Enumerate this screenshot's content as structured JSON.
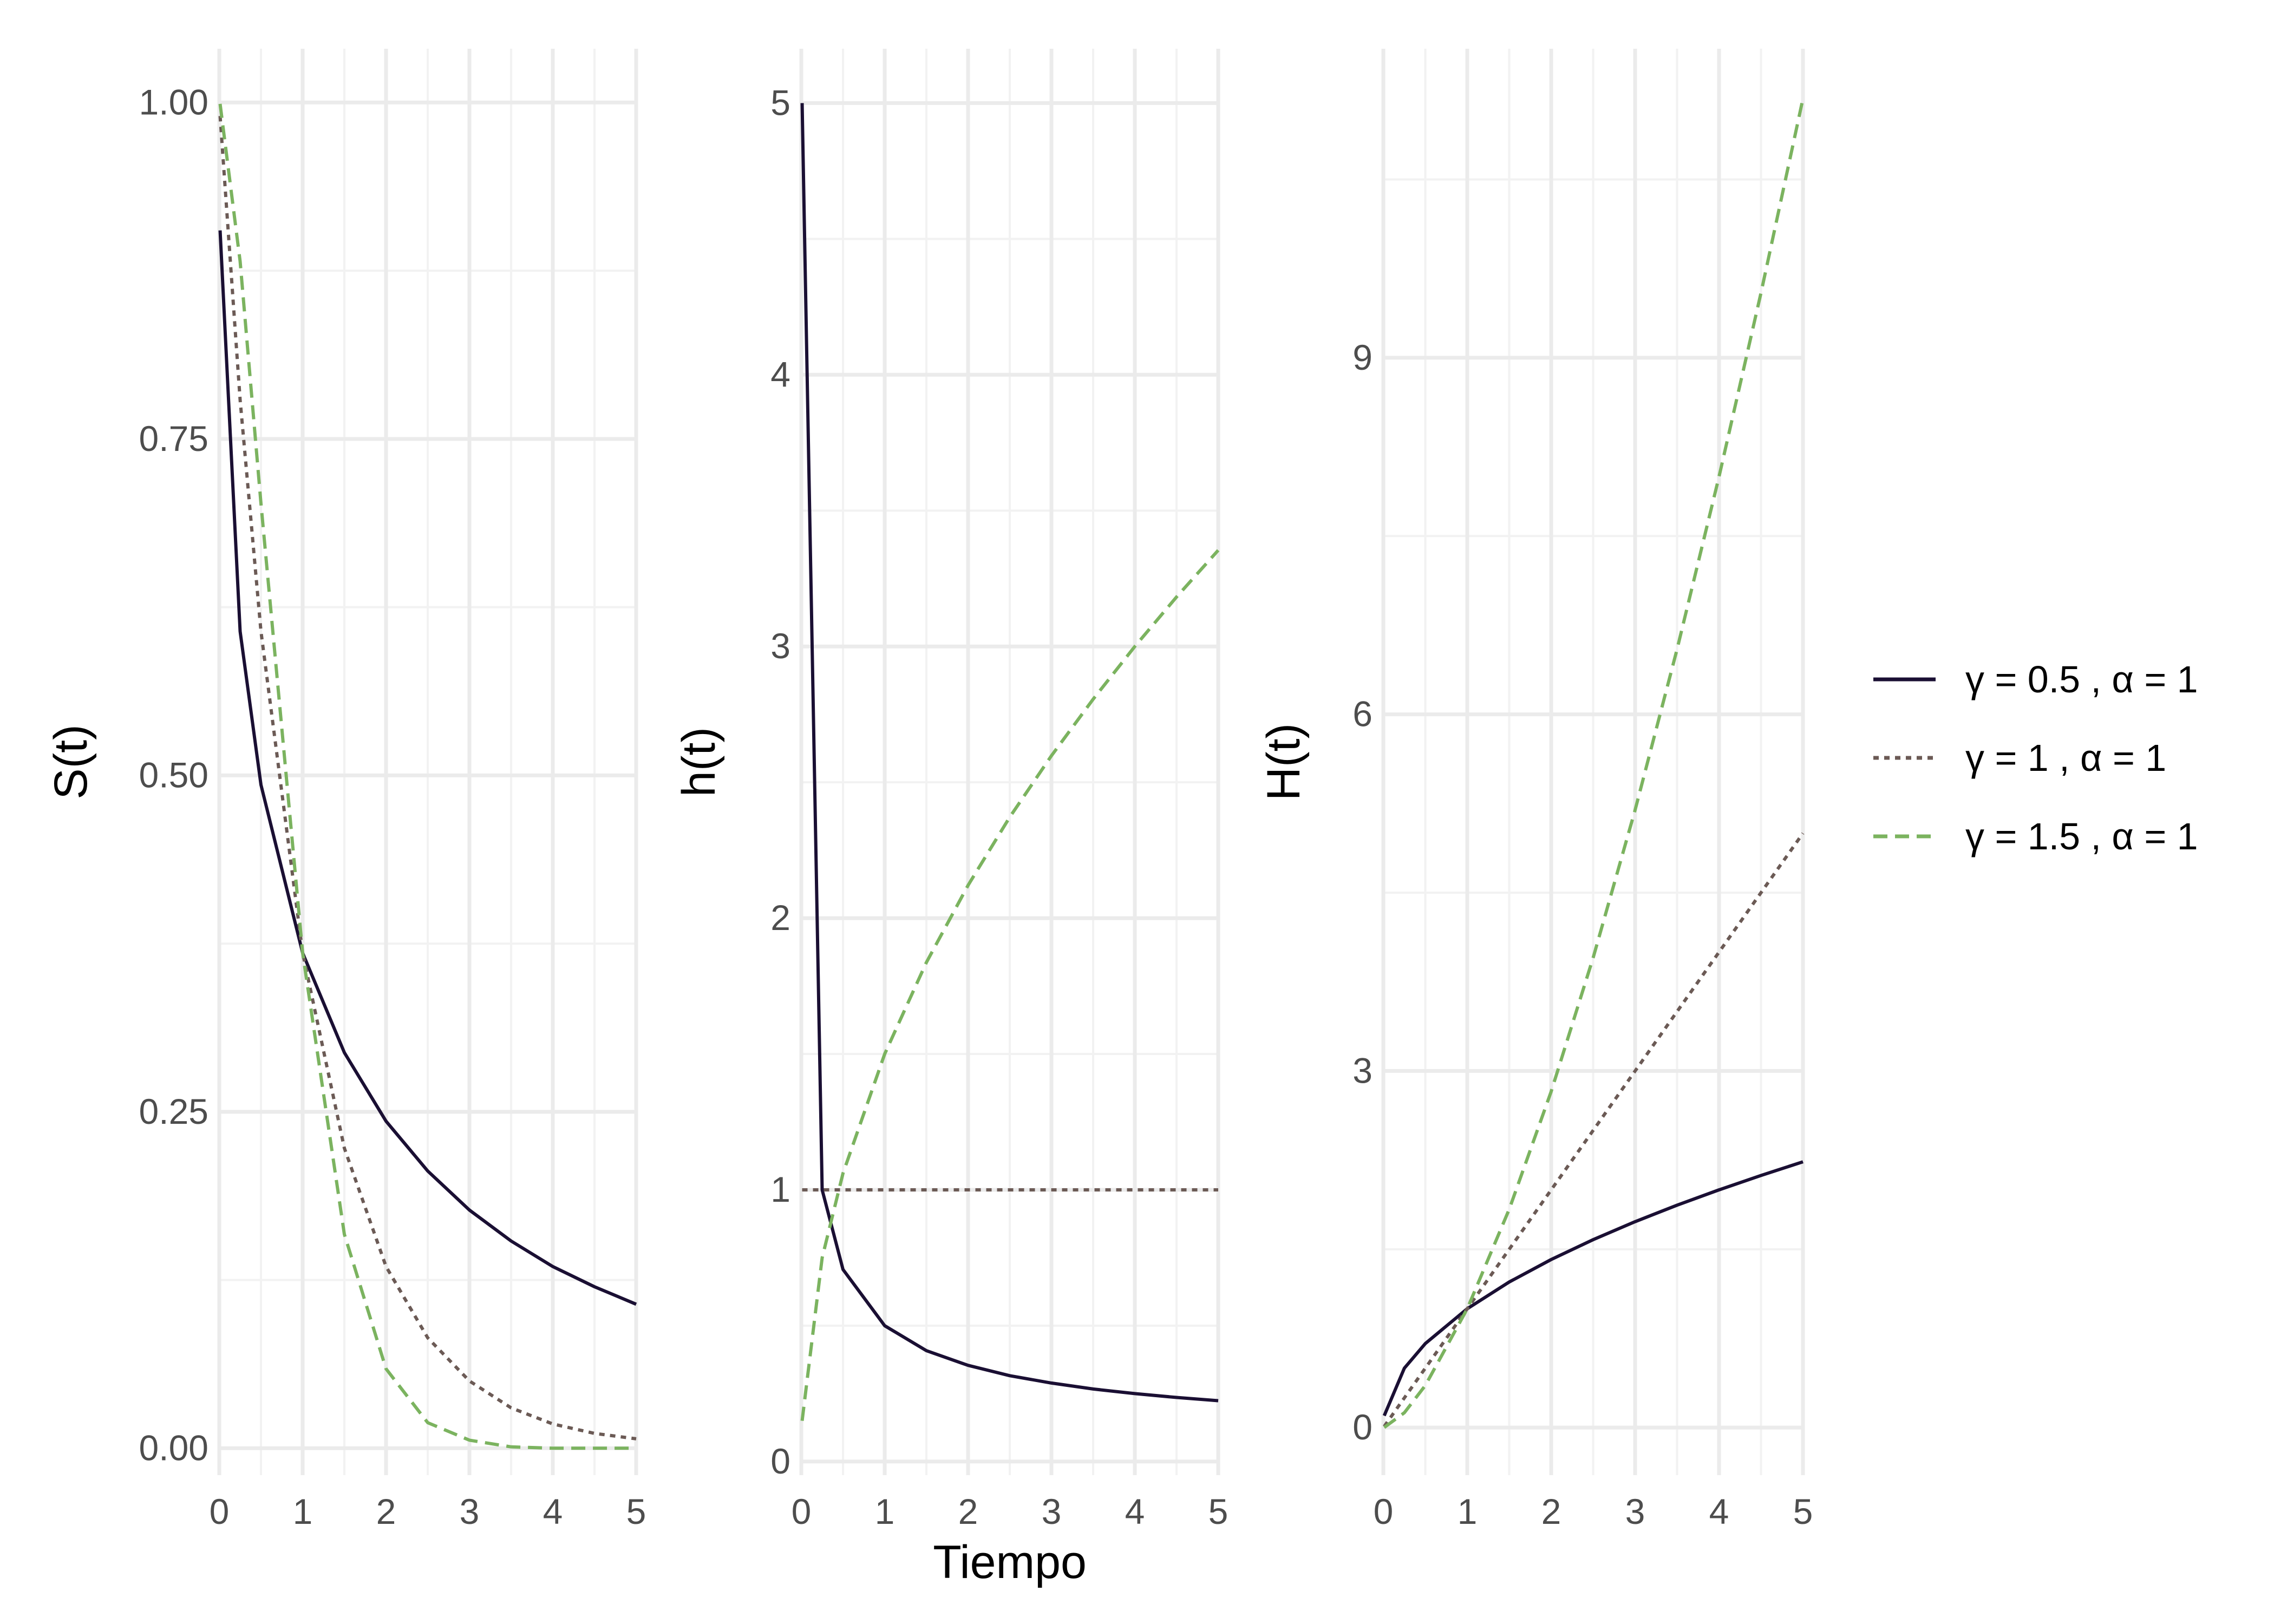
{
  "chart_data": [
    {
      "type": "line",
      "xlabel": "",
      "ylabel": "S(t)",
      "xlim": [
        0,
        5
      ],
      "ylim": [
        -0.02,
        1.04
      ],
      "x_ticks": [
        "0",
        "1",
        "2",
        "3",
        "4",
        "5"
      ],
      "y_ticks": [
        "0.00",
        "0.25",
        "0.50",
        "0.75",
        "1.00"
      ],
      "y_tick_values": [
        0,
        0.25,
        0.5,
        0.75,
        1.0
      ],
      "grid": true,
      "function": "survival",
      "series": [
        {
          "ref": 0,
          "x": [
            0.01,
            0.25,
            0.5,
            1,
            1.5,
            2,
            2.5,
            3,
            3.5,
            4,
            4.5,
            5
          ],
          "values": [
            0.905,
            0.607,
            0.493,
            0.368,
            0.294,
            0.243,
            0.206,
            0.177,
            0.154,
            0.135,
            0.12,
            0.107
          ]
        },
        {
          "ref": 1,
          "x": [
            0.01,
            0.25,
            0.5,
            1,
            1.5,
            2,
            2.5,
            3,
            3.5,
            4,
            4.5,
            5
          ],
          "values": [
            0.99,
            0.779,
            0.607,
            0.368,
            0.223,
            0.135,
            0.082,
            0.05,
            0.03,
            0.018,
            0.011,
            0.007
          ]
        },
        {
          "ref": 2,
          "x": [
            0.01,
            0.25,
            0.5,
            1,
            1.5,
            2,
            2.5,
            3,
            3.5,
            4,
            4.5,
            5
          ],
          "values": [
            0.999,
            0.882,
            0.702,
            0.368,
            0.159,
            0.059,
            0.019,
            0.006,
            0.001,
            0.0,
            0.0,
            0.0
          ]
        }
      ]
    },
    {
      "type": "line",
      "xlabel": "Tiempo",
      "ylabel": "h(t)",
      "xlim": [
        0,
        5
      ],
      "ylim": [
        -0.05,
        5.2
      ],
      "x_ticks": [
        "0",
        "1",
        "2",
        "3",
        "4",
        "5"
      ],
      "y_ticks": [
        "0",
        "1",
        "2",
        "3",
        "4",
        "5"
      ],
      "y_tick_values": [
        0,
        1,
        2,
        3,
        4,
        5
      ],
      "grid": true,
      "function": "hazard",
      "series": [
        {
          "ref": 0,
          "x": [
            0.01,
            0.25,
            0.5,
            1,
            1.5,
            2,
            2.5,
            3,
            3.5,
            4,
            4.5,
            5
          ],
          "values": [
            5.0,
            1.0,
            0.707,
            0.5,
            0.408,
            0.354,
            0.316,
            0.289,
            0.267,
            0.25,
            0.236,
            0.224
          ]
        },
        {
          "ref": 1,
          "x": [
            0.01,
            5
          ],
          "values": [
            1.0,
            1.0
          ]
        },
        {
          "ref": 2,
          "x": [
            0.01,
            0.25,
            0.5,
            1,
            1.5,
            2,
            2.5,
            3,
            3.5,
            4,
            4.5,
            5
          ],
          "values": [
            0.15,
            0.75,
            1.061,
            1.5,
            1.837,
            2.121,
            2.372,
            2.598,
            2.806,
            3.0,
            3.182,
            3.354
          ]
        }
      ]
    },
    {
      "type": "line",
      "xlabel": "",
      "ylabel": "H(t)",
      "xlim": [
        0,
        5
      ],
      "ylim": [
        -0.4,
        11.6
      ],
      "x_ticks": [
        "0",
        "1",
        "2",
        "3",
        "4",
        "5"
      ],
      "y_ticks": [
        "0",
        "3",
        "6",
        "9"
      ],
      "y_tick_values": [
        0,
        3,
        6,
        9
      ],
      "grid": true,
      "function": "cumulative_hazard",
      "series": [
        {
          "ref": 0,
          "x": [
            0.01,
            0.25,
            0.5,
            1,
            1.5,
            2,
            2.5,
            3,
            3.5,
            4,
            4.5,
            5
          ],
          "values": [
            0.1,
            0.5,
            0.707,
            1.0,
            1.225,
            1.414,
            1.581,
            1.732,
            1.871,
            2.0,
            2.121,
            2.236
          ]
        },
        {
          "ref": 1,
          "x": [
            0.01,
            0.25,
            0.5,
            1,
            1.5,
            2,
            2.5,
            3,
            3.5,
            4,
            4.5,
            5
          ],
          "values": [
            0.01,
            0.25,
            0.5,
            1.0,
            1.5,
            2.0,
            2.5,
            3.0,
            3.5,
            4.0,
            4.5,
            5.0
          ]
        },
        {
          "ref": 2,
          "x": [
            0.01,
            0.25,
            0.5,
            1,
            1.5,
            2,
            2.5,
            3,
            3.5,
            4,
            4.5,
            5
          ],
          "values": [
            0.001,
            0.125,
            0.354,
            1.0,
            1.837,
            2.828,
            3.953,
            5.196,
            6.548,
            8.0,
            9.546,
            11.18
          ]
        }
      ]
    }
  ],
  "legend": {
    "placement": "right",
    "entries": [
      {
        "label": "γ = 0.5 , α = 1",
        "color": "#1a0f33",
        "dash": "solid"
      },
      {
        "label": "γ = 1 , α = 1",
        "color": "#6b5a55",
        "dash": "dotted"
      },
      {
        "label": "γ = 1.5 , α = 1",
        "color": "#7bb35f",
        "dash": "dashed"
      }
    ]
  }
}
